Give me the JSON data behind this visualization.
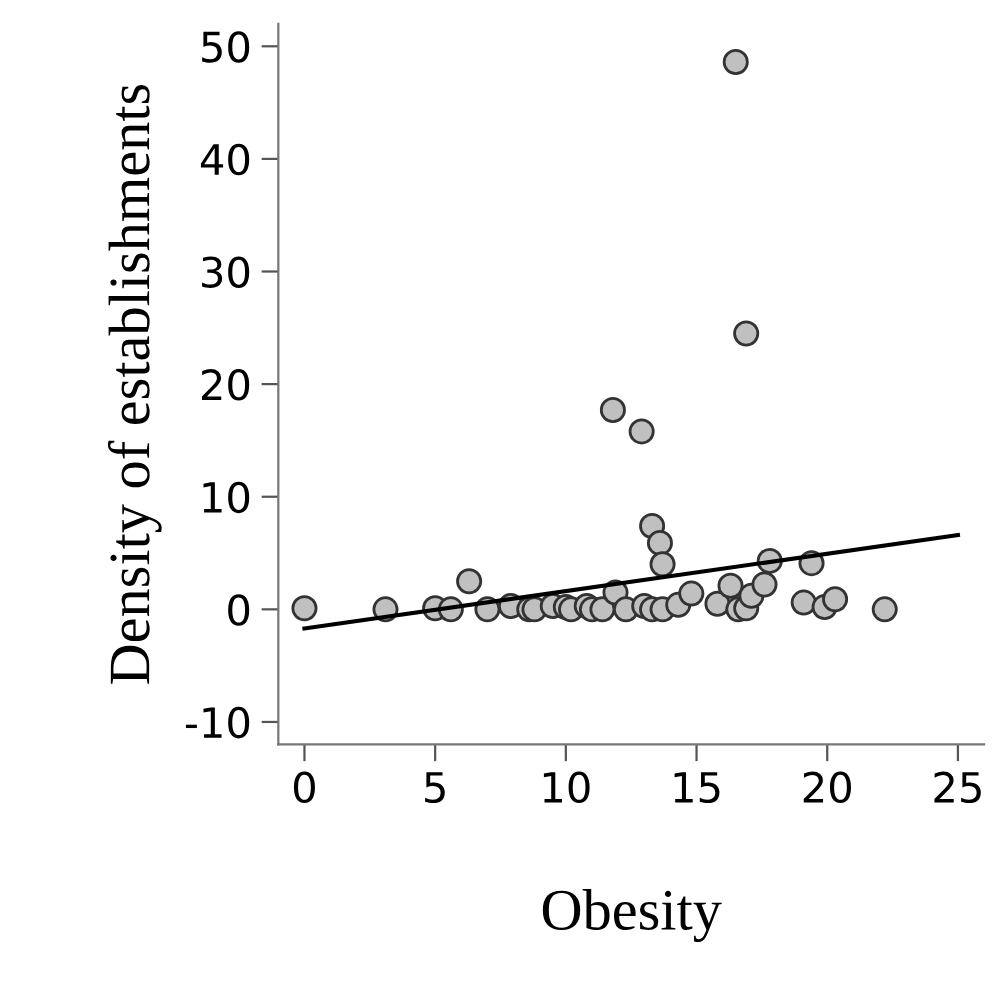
{
  "chart_data": {
    "type": "scatter",
    "xlabel": "Obesity",
    "ylabel": "Density of establishments",
    "xlim": [
      -1,
      26
    ],
    "ylim": [
      -12,
      52
    ],
    "xticks": [
      0,
      5,
      10,
      15,
      20,
      25
    ],
    "yticks": [
      -10,
      0,
      10,
      20,
      30,
      40,
      50
    ],
    "grid": false,
    "legend": false,
    "marker": "circle",
    "series": [
      {
        "color": "#c0c0c0",
        "x": [
          0,
          3.1,
          5.0,
          5.6,
          6.3,
          7.0,
          7.9,
          8.6,
          8.8,
          9.5,
          10.0,
          10.2,
          10.8,
          11.0,
          11.4,
          11.9,
          11.8,
          12.3,
          12.9,
          13.0,
          13.3,
          13.6,
          13.7,
          13.3,
          13.7,
          14.3,
          14.8,
          15.8,
          16.3,
          16.6,
          16.9,
          17.1,
          17.6,
          17.8,
          19.1,
          19.4,
          19.9,
          20.3,
          22.2,
          16.5,
          16.9
        ],
        "values": [
          0.1,
          0,
          0.1,
          0,
          2.5,
          0,
          0.3,
          0,
          0,
          0.3,
          0.2,
          0,
          0.3,
          0,
          0,
          1.5,
          17.7,
          0,
          15.8,
          0.3,
          7.4,
          5.9,
          4.0,
          0,
          0,
          0.4,
          1.4,
          0.5,
          2.1,
          0,
          0.1,
          1.2,
          2.2,
          4.3,
          0.6,
          4.1,
          0.2,
          0.9,
          0,
          48.6,
          24.5
        ]
      },
      {
        "type": "line",
        "color": "#000000",
        "x": [
          0,
          25
        ],
        "values": [
          -1.7,
          6.6
        ],
        "marker": "none",
        "line_style": "solid"
      }
    ]
  }
}
